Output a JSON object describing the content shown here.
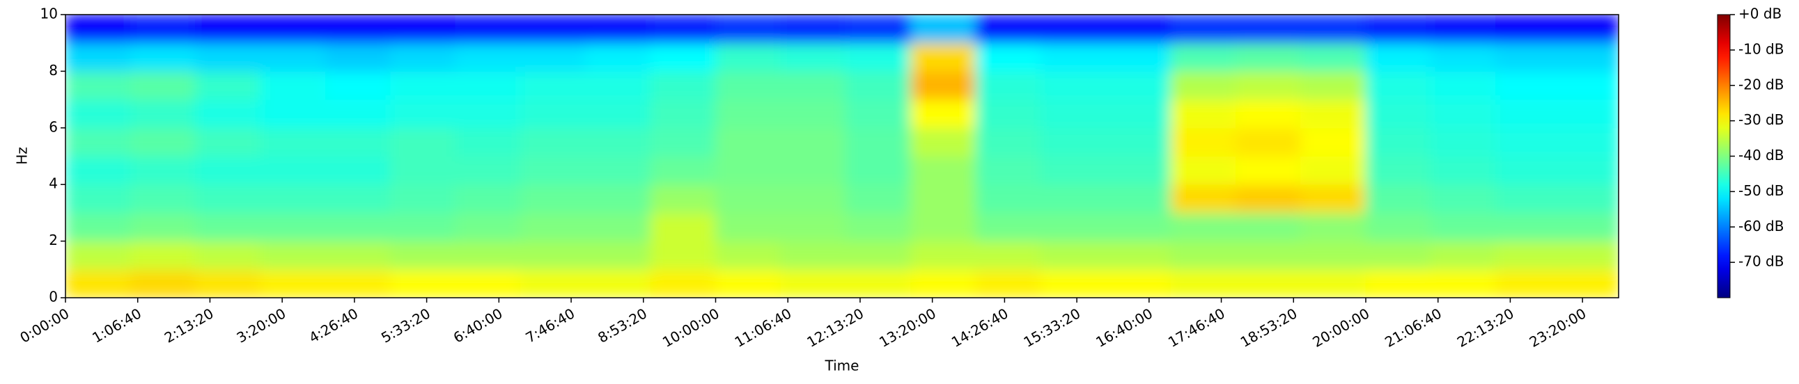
{
  "chart_data": {
    "type": "spectrogram",
    "xlabel": "Time",
    "ylabel": "Hz",
    "xlim": [
      0,
      86000
    ],
    "ylim": [
      0,
      10
    ],
    "xticks": [
      {
        "value": 0,
        "label": "0:00:00"
      },
      {
        "value": 4000,
        "label": "1:06:40"
      },
      {
        "value": 8000,
        "label": "2:13:20"
      },
      {
        "value": 12000,
        "label": "3:20:00"
      },
      {
        "value": 16000,
        "label": "4:26:40"
      },
      {
        "value": 20000,
        "label": "5:33:20"
      },
      {
        "value": 24000,
        "label": "6:40:00"
      },
      {
        "value": 28000,
        "label": "7:46:40"
      },
      {
        "value": 32000,
        "label": "8:53:20"
      },
      {
        "value": 36000,
        "label": "10:00:00"
      },
      {
        "value": 40000,
        "label": "11:06:40"
      },
      {
        "value": 44000,
        "label": "12:13:20"
      },
      {
        "value": 48000,
        "label": "13:20:00"
      },
      {
        "value": 52000,
        "label": "14:26:40"
      },
      {
        "value": 56000,
        "label": "15:33:20"
      },
      {
        "value": 60000,
        "label": "16:40:00"
      },
      {
        "value": 64000,
        "label": "17:46:40"
      },
      {
        "value": 68000,
        "label": "18:53:20"
      },
      {
        "value": 72000,
        "label": "20:00:00"
      },
      {
        "value": 76000,
        "label": "21:06:40"
      },
      {
        "value": 80000,
        "label": "22:13:20"
      },
      {
        "value": 84000,
        "label": "23:20:00"
      }
    ],
    "yticks": [
      0,
      2,
      4,
      6,
      8,
      10
    ],
    "colormap": "jet",
    "clim": [
      -80,
      0
    ],
    "cticks": [
      {
        "value": 0,
        "label": "+0 dB"
      },
      {
        "value": -10,
        "label": "-10 dB"
      },
      {
        "value": -20,
        "label": "-20 dB"
      },
      {
        "value": -30,
        "label": "-30 dB"
      },
      {
        "value": -40,
        "label": "-40 dB"
      },
      {
        "value": -50,
        "label": "-50 dB"
      },
      {
        "value": -60,
        "label": "-60 dB"
      },
      {
        "value": -70,
        "label": "-70 dB"
      }
    ],
    "time_bins": [
      0,
      3600,
      7200,
      10800,
      14400,
      18000,
      21600,
      25200,
      28800,
      32400,
      36000,
      39600,
      43200,
      46800,
      50400,
      54000,
      57600,
      61200,
      64800,
      68400,
      72000,
      75600,
      79200,
      82800,
      86000
    ],
    "freq_bins": [
      0,
      1,
      2,
      3,
      4,
      5,
      6,
      7,
      8,
      9,
      10
    ],
    "z": [
      [
        -28,
        -27,
        -28,
        -29,
        -29,
        -30,
        -30,
        -31,
        -31,
        -29,
        -30,
        -31,
        -31,
        -30,
        -29,
        -30,
        -30,
        -31,
        -31,
        -31,
        -30,
        -30,
        -29,
        -29
      ],
      [
        -35,
        -34,
        -35,
        -36,
        -36,
        -37,
        -37,
        -37,
        -37,
        -34,
        -36,
        -37,
        -37,
        -35,
        -35,
        -36,
        -36,
        -37,
        -37,
        -37,
        -37,
        -36,
        -35,
        -35
      ],
      [
        -42,
        -41,
        -42,
        -42,
        -42,
        -42,
        -41,
        -40,
        -40,
        -34,
        -39,
        -39,
        -40,
        -38,
        -41,
        -41,
        -41,
        -40,
        -40,
        -39,
        -41,
        -42,
        -42,
        -42
      ],
      [
        -45,
        -44,
        -45,
        -45,
        -45,
        -44,
        -43,
        -42,
        -42,
        -38,
        -40,
        -40,
        -42,
        -38,
        -43,
        -43,
        -43,
        -27,
        -26,
        -27,
        -43,
        -44,
        -45,
        -45
      ],
      [
        -47,
        -46,
        -47,
        -47,
        -47,
        -45,
        -45,
        -44,
        -44,
        -42,
        -41,
        -41,
        -43,
        -38,
        -44,
        -45,
        -45,
        -31,
        -30,
        -31,
        -45,
        -46,
        -47,
        -47
      ],
      [
        -44,
        -43,
        -45,
        -46,
        -46,
        -45,
        -46,
        -45,
        -45,
        -44,
        -41,
        -41,
        -43,
        -35,
        -45,
        -46,
        -46,
        -29,
        -28,
        -30,
        -46,
        -47,
        -48,
        -48
      ],
      [
        -47,
        -46,
        -48,
        -49,
        -49,
        -48,
        -48,
        -47,
        -47,
        -45,
        -42,
        -42,
        -44,
        -30,
        -46,
        -47,
        -47,
        -31,
        -30,
        -31,
        -47,
        -48,
        -49,
        -49
      ],
      [
        -44,
        -43,
        -46,
        -49,
        -50,
        -49,
        -49,
        -48,
        -48,
        -46,
        -43,
        -43,
        -45,
        -24,
        -47,
        -48,
        -48,
        -36,
        -35,
        -36,
        -48,
        -49,
        -50,
        -50
      ],
      [
        -53,
        -52,
        -53,
        -53,
        -54,
        -53,
        -52,
        -52,
        -51,
        -50,
        -46,
        -47,
        -48,
        -27,
        -50,
        -51,
        -51,
        -44,
        -43,
        -44,
        -51,
        -52,
        -53,
        -53
      ],
      [
        -70,
        -68,
        -70,
        -70,
        -70,
        -70,
        -69,
        -69,
        -69,
        -68,
        -66,
        -67,
        -66,
        -55,
        -69,
        -69,
        -69,
        -66,
        -66,
        -66,
        -68,
        -69,
        -70,
        -70
      ]
    ]
  }
}
